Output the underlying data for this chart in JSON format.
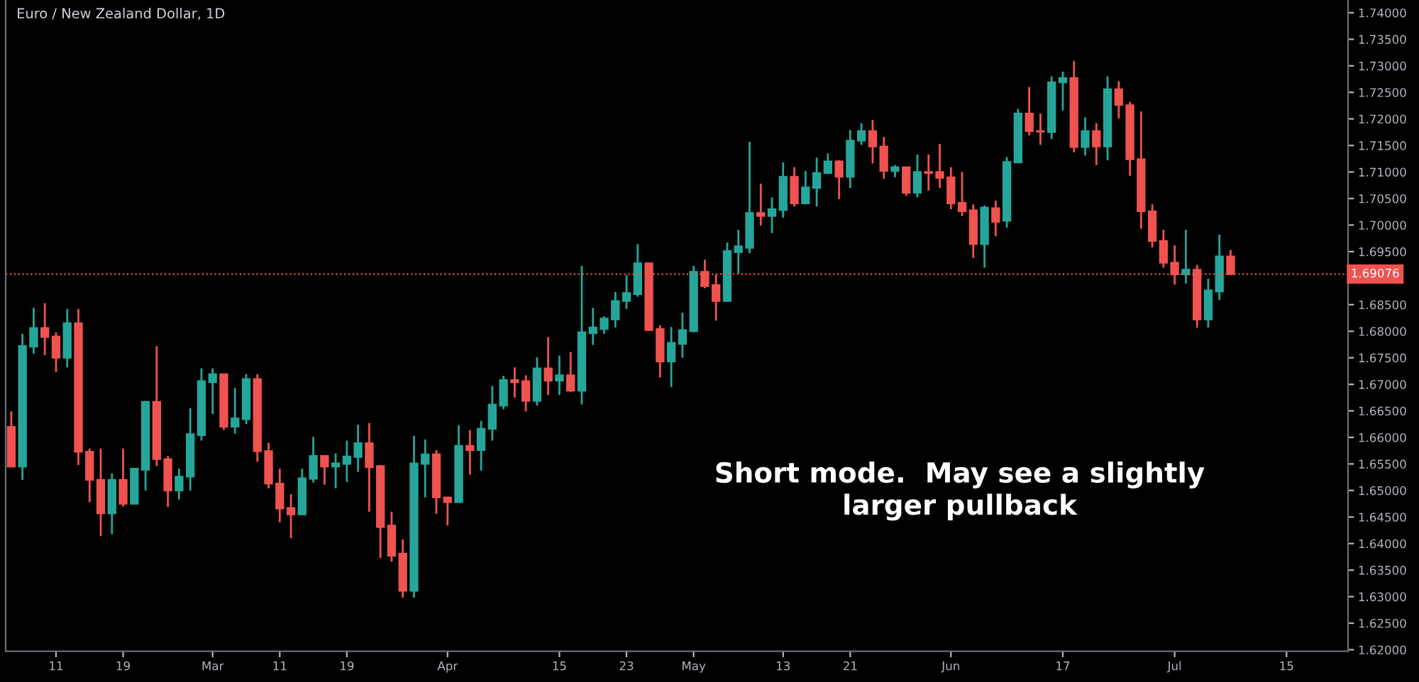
{
  "chart_data": {
    "type": "candlestick",
    "title": "Euro / New Zealand Dollar, 1D",
    "annotations": [
      "Short mode.  May see a slightly\nlarger pullback"
    ],
    "categories": [
      null,
      null,
      null,
      null,
      "11",
      null,
      null,
      null,
      null,
      null,
      "19",
      null,
      null,
      null,
      null,
      null,
      null,
      null,
      "Mar",
      null,
      null,
      null,
      null,
      null,
      "11",
      null,
      null,
      null,
      null,
      null,
      "19",
      null,
      null,
      null,
      null,
      null,
      null,
      null,
      null,
      "Apr",
      null,
      null,
      null,
      null,
      null,
      null,
      null,
      null,
      null,
      "15",
      null,
      null,
      null,
      null,
      null,
      "23",
      null,
      null,
      null,
      null,
      null,
      "May",
      null,
      null,
      null,
      null,
      null,
      null,
      null,
      "13",
      null,
      null,
      null,
      null,
      null,
      "21",
      null,
      null,
      null,
      null,
      null,
      null,
      null,
      null,
      "Jun",
      null,
      null,
      null,
      null,
      null,
      null,
      null,
      null,
      null,
      "17",
      null,
      null,
      null,
      null,
      null,
      null,
      null,
      null,
      null,
      "Jul",
      null,
      null,
      null,
      null,
      null,
      null,
      null,
      null,
      null,
      "15",
      null,
      null,
      null,
      null,
      null
    ],
    "ohlc": [
      [
        1.662,
        1.6649,
        1.6544,
        1.6545
      ],
      [
        1.6545,
        1.6795,
        1.652,
        1.6772
      ],
      [
        1.6771,
        1.6844,
        1.6758,
        1.6806
      ],
      [
        1.6806,
        1.6853,
        1.6755,
        1.6789
      ],
      [
        1.679,
        1.6798,
        1.6723,
        1.675
      ],
      [
        1.675,
        1.6842,
        1.6732,
        1.6815
      ],
      [
        1.6815,
        1.6842,
        1.6548,
        1.6573
      ],
      [
        1.6573,
        1.6579,
        1.6478,
        1.652
      ],
      [
        1.652,
        1.6579,
        1.6414,
        1.6457
      ],
      [
        1.6457,
        1.6532,
        1.6418,
        1.652
      ],
      [
        1.652,
        1.6579,
        1.647,
        1.6475
      ],
      [
        1.6475,
        1.6541,
        1.6475,
        1.6541
      ],
      [
        1.6539,
        1.6669,
        1.65,
        1.6667
      ],
      [
        1.6667,
        1.6772,
        1.6546,
        1.6559
      ],
      [
        1.6559,
        1.6565,
        1.6469,
        1.65
      ],
      [
        1.65,
        1.6541,
        1.6483,
        1.6526
      ],
      [
        1.6526,
        1.6655,
        1.65,
        1.6606
      ],
      [
        1.6604,
        1.673,
        1.6594,
        1.6706
      ],
      [
        1.6704,
        1.673,
        1.6644,
        1.6719
      ],
      [
        1.6719,
        1.6719,
        1.6614,
        1.662
      ],
      [
        1.662,
        1.6693,
        1.6607,
        1.6636
      ],
      [
        1.6634,
        1.6719,
        1.6625,
        1.671
      ],
      [
        1.671,
        1.6719,
        1.6554,
        1.6574
      ],
      [
        1.6574,
        1.659,
        1.6504,
        1.6513
      ],
      [
        1.6513,
        1.6541,
        1.644,
        1.6466
      ],
      [
        1.6467,
        1.6493,
        1.641,
        1.6455
      ],
      [
        1.6455,
        1.6541,
        1.6455,
        1.6523
      ],
      [
        1.6522,
        1.6601,
        1.6515,
        1.6565
      ],
      [
        1.6565,
        1.6565,
        1.6511,
        1.6545
      ],
      [
        1.6545,
        1.657,
        1.6504,
        1.6551
      ],
      [
        1.655,
        1.6594,
        1.6516,
        1.6564
      ],
      [
        1.6563,
        1.6624,
        1.6535,
        1.6589
      ],
      [
        1.6589,
        1.6627,
        1.646,
        1.6544
      ],
      [
        1.6546,
        1.6548,
        1.6373,
        1.6431
      ],
      [
        1.6434,
        1.646,
        1.6366,
        1.6377
      ],
      [
        1.6381,
        1.6408,
        1.6298,
        1.6311
      ],
      [
        1.6311,
        1.6603,
        1.6298,
        1.6551
      ],
      [
        1.655,
        1.6596,
        1.6487,
        1.6568
      ],
      [
        1.6568,
        1.6576,
        1.6456,
        1.6487
      ],
      [
        1.6487,
        1.6487,
        1.6434,
        1.6478
      ],
      [
        1.6478,
        1.6623,
        1.6478,
        1.6584
      ],
      [
        1.6584,
        1.6614,
        1.653,
        1.6576
      ],
      [
        1.6576,
        1.6631,
        1.6537,
        1.6616
      ],
      [
        1.6616,
        1.6697,
        1.6594,
        1.6662
      ],
      [
        1.666,
        1.6716,
        1.6653,
        1.6708
      ],
      [
        1.6708,
        1.6732,
        1.6675,
        1.6704
      ],
      [
        1.6706,
        1.6717,
        1.6649,
        1.6669
      ],
      [
        1.6669,
        1.6751,
        1.666,
        1.673
      ],
      [
        1.673,
        1.6789,
        1.668,
        1.6707
      ],
      [
        1.6707,
        1.6754,
        1.668,
        1.6717
      ],
      [
        1.6717,
        1.6761,
        1.6686,
        1.6688
      ],
      [
        1.6688,
        1.6923,
        1.6662,
        1.6798
      ],
      [
        1.6796,
        1.6844,
        1.6774,
        1.6807
      ],
      [
        1.6804,
        1.6828,
        1.6795,
        1.6824
      ],
      [
        1.6822,
        1.6874,
        1.6807,
        1.6857
      ],
      [
        1.6857,
        1.6906,
        1.6842,
        1.6872
      ],
      [
        1.687,
        1.6964,
        1.6865,
        1.6928
      ],
      [
        1.6928,
        1.6928,
        1.6801,
        1.6802
      ],
      [
        1.6804,
        1.6811,
        1.6713,
        1.6743
      ],
      [
        1.6743,
        1.6808,
        1.6695,
        1.6778
      ],
      [
        1.6776,
        1.6835,
        1.675,
        1.6802
      ],
      [
        1.68,
        1.6923,
        1.6798,
        1.6912
      ],
      [
        1.6912,
        1.6935,
        1.6881,
        1.6885
      ],
      [
        1.6887,
        1.6907,
        1.682,
        1.6857
      ],
      [
        1.6857,
        1.6967,
        1.6857,
        1.6951
      ],
      [
        1.6949,
        1.6991,
        1.6909,
        1.696
      ],
      [
        1.6957,
        1.7157,
        1.6947,
        1.7023
      ],
      [
        1.7023,
        1.7078,
        1.6999,
        1.7017
      ],
      [
        1.7017,
        1.7052,
        1.6985,
        1.703
      ],
      [
        1.7028,
        1.7118,
        1.7014,
        1.7091
      ],
      [
        1.7091,
        1.7109,
        1.7035,
        1.7041
      ],
      [
        1.7041,
        1.7102,
        1.7039,
        1.7071
      ],
      [
        1.707,
        1.7127,
        1.7035,
        1.7098
      ],
      [
        1.7098,
        1.7135,
        1.7096,
        1.712
      ],
      [
        1.712,
        1.7122,
        1.7049,
        1.7091
      ],
      [
        1.7091,
        1.7179,
        1.707,
        1.7159
      ],
      [
        1.7159,
        1.7192,
        1.7151,
        1.7177
      ],
      [
        1.7177,
        1.7198,
        1.7116,
        1.7148
      ],
      [
        1.7148,
        1.7166,
        1.7087,
        1.7102
      ],
      [
        1.7102,
        1.7113,
        1.709,
        1.7109
      ],
      [
        1.7109,
        1.7109,
        1.7055,
        1.7061
      ],
      [
        1.7061,
        1.7133,
        1.7052,
        1.71
      ],
      [
        1.71,
        1.7133,
        1.7065,
        1.7098
      ],
      [
        1.71,
        1.7153,
        1.707,
        1.7089
      ],
      [
        1.709,
        1.7109,
        1.703,
        1.7041
      ],
      [
        1.7042,
        1.71,
        1.7017,
        1.7026
      ],
      [
        1.7028,
        1.7039,
        1.6938,
        1.6964
      ],
      [
        1.6964,
        1.7037,
        1.692,
        1.7033
      ],
      [
        1.7032,
        1.7046,
        1.6979,
        1.7006
      ],
      [
        1.7008,
        1.7128,
        1.6995,
        1.7119
      ],
      [
        1.7118,
        1.7219,
        1.7118,
        1.721
      ],
      [
        1.721,
        1.726,
        1.7169,
        1.7177
      ],
      [
        1.7177,
        1.721,
        1.7151,
        1.7176
      ],
      [
        1.7175,
        1.728,
        1.7162,
        1.7269
      ],
      [
        1.7269,
        1.7289,
        1.7216,
        1.7277
      ],
      [
        1.7277,
        1.7309,
        1.7137,
        1.7147
      ],
      [
        1.7147,
        1.7203,
        1.7131,
        1.7177
      ],
      [
        1.7177,
        1.7192,
        1.7113,
        1.7148
      ],
      [
        1.7148,
        1.728,
        1.7122,
        1.7256
      ],
      [
        1.7256,
        1.7271,
        1.7201,
        1.7226
      ],
      [
        1.7226,
        1.7232,
        1.7093,
        1.7124
      ],
      [
        1.7124,
        1.7214,
        1.6993,
        1.7026
      ],
      [
        1.7026,
        1.7039,
        1.6958,
        1.697
      ],
      [
        1.697,
        1.6991,
        1.692,
        1.6929
      ],
      [
        1.6929,
        1.6962,
        1.6888,
        1.6907
      ],
      [
        1.6907,
        1.6991,
        1.689,
        1.6916
      ],
      [
        1.6916,
        1.6925,
        1.6807,
        1.6822
      ],
      [
        1.6822,
        1.6899,
        1.6807,
        1.6877
      ],
      [
        1.6875,
        1.6982,
        1.6859,
        1.6941
      ],
      [
        1.6941,
        1.6953,
        1.6907,
        1.69076
      ],
      null,
      null,
      null,
      null,
      null,
      null,
      null,
      null,
      null,
      null
    ],
    "colors": [
      "#ef5350",
      "#26a69a",
      "#26a69a",
      "#ef5350",
      "#ef5350",
      "#26a69a",
      "#ef5350",
      "#ef5350",
      "#ef5350",
      "#26a69a",
      "#ef5350",
      "#26a69a",
      "#26a69a",
      "#ef5350",
      "#ef5350",
      "#26a69a",
      "#26a69a",
      "#26a69a",
      "#26a69a",
      "#ef5350",
      "#26a69a",
      "#26a69a",
      "#ef5350",
      "#ef5350",
      "#ef5350",
      "#ef5350",
      "#26a69a",
      "#26a69a",
      "#ef5350",
      "#26a69a",
      "#26a69a",
      "#26a69a",
      "#ef5350",
      "#ef5350",
      "#ef5350",
      "#ef5350",
      "#26a69a",
      "#26a69a",
      "#ef5350",
      "#ef5350",
      "#26a69a",
      "#ef5350",
      "#26a69a",
      "#26a69a",
      "#26a69a",
      "#ef5350",
      "#ef5350",
      "#26a69a",
      "#ef5350",
      "#26a69a",
      "#ef5350",
      "#26a69a",
      "#26a69a",
      "#26a69a",
      "#26a69a",
      "#26a69a",
      "#26a69a",
      "#ef5350",
      "#ef5350",
      "#26a69a",
      "#26a69a",
      "#26a69a",
      "#ef5350",
      "#ef5350",
      "#26a69a",
      "#26a69a",
      "#26a69a",
      "#ef5350",
      "#26a69a",
      "#26a69a",
      "#ef5350",
      "#26a69a",
      "#26a69a",
      "#26a69a",
      "#ef5350",
      "#26a69a",
      "#26a69a",
      "#ef5350",
      "#ef5350",
      "#26a69a",
      "#ef5350",
      "#26a69a",
      "#ef5350",
      "#ef5350",
      "#ef5350",
      "#ef5350",
      "#ef5350",
      "#26a69a",
      "#ef5350",
      "#26a69a",
      "#26a69a",
      "#ef5350",
      "#ef5350",
      "#26a69a",
      "#26a69a",
      "#ef5350",
      "#26a69a",
      "#ef5350",
      "#26a69a",
      "#ef5350",
      "#ef5350",
      "#ef5350",
      "#ef5350",
      "#ef5350",
      "#ef5350",
      "#26a69a",
      "#ef5350",
      "#26a69a",
      "#26a69a",
      "#ef5350",
      null,
      null,
      null,
      null,
      null,
      null,
      null,
      null,
      null,
      null
    ],
    "ylim": [
      1.6197,
      1.7424
    ],
    "yticks": [
      {
        "value": 1.62,
        "label": "1.62000"
      },
      {
        "value": 1.625,
        "label": "1.62500"
      },
      {
        "value": 1.63,
        "label": "1.63000"
      },
      {
        "value": 1.635,
        "label": "1.63500"
      },
      {
        "value": 1.64,
        "label": "1.64000"
      },
      {
        "value": 1.645,
        "label": "1.64500"
      },
      {
        "value": 1.65,
        "label": "1.65000"
      },
      {
        "value": 1.655,
        "label": "1.65500"
      },
      {
        "value": 1.66,
        "label": "1.66000"
      },
      {
        "value": 1.665,
        "label": "1.66500"
      },
      {
        "value": 1.67,
        "label": "1.67000"
      },
      {
        "value": 1.675,
        "label": "1.67500"
      },
      {
        "value": 1.68,
        "label": "1.68000"
      },
      {
        "value": 1.685,
        "label": "1.68500"
      },
      {
        "value": 1.695,
        "label": "1.69500"
      },
      {
        "value": 1.7,
        "label": "1.70000"
      },
      {
        "value": 1.705,
        "label": "1.70500"
      },
      {
        "value": 1.71,
        "label": "1.71000"
      },
      {
        "value": 1.715,
        "label": "1.71500"
      },
      {
        "value": 1.72,
        "label": "1.72000"
      },
      {
        "value": 1.725,
        "label": "1.72500"
      },
      {
        "value": 1.73,
        "label": "1.73000"
      },
      {
        "value": 1.735,
        "label": "1.73500"
      },
      {
        "value": 1.74,
        "label": "1.74000"
      }
    ],
    "ref_lines": [
      {
        "axis": "y",
        "value": 1.69076,
        "label": "1.69076",
        "color": "#ef5350",
        "line_style": "dotted"
      }
    ]
  }
}
